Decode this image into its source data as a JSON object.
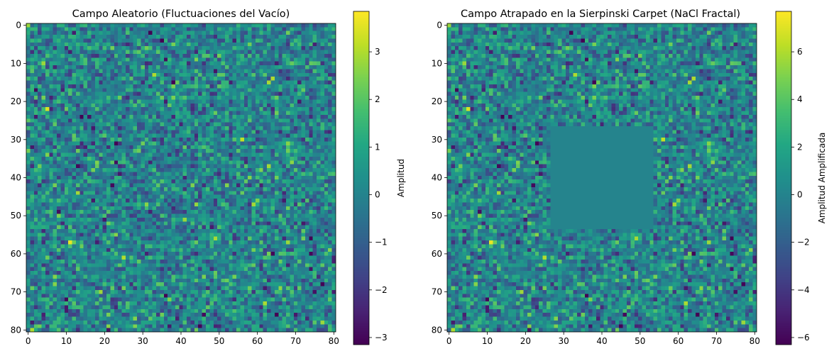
{
  "chart_data": [
    {
      "type": "heatmap",
      "title": "Campo Aleatorio (Fluctuaciones del Vacío)",
      "xlabel": "",
      "ylabel": "",
      "x_ticks": [
        0,
        10,
        20,
        30,
        40,
        50,
        60,
        70,
        80
      ],
      "y_ticks": [
        0,
        10,
        20,
        30,
        40,
        50,
        60,
        70,
        80
      ],
      "grid_size": [
        81,
        81
      ],
      "colormap": "viridis",
      "values_description_distribution": "random normal",
      "value_range": [
        -3.15,
        3.85
      ],
      "colorbar": {
        "label": "Amplitud",
        "ticks": [
          3,
          2,
          1,
          0,
          -1,
          -2,
          -3
        ],
        "tick_labels": [
          "3",
          "2",
          "1",
          "0",
          "−1",
          "−2",
          "−3"
        ]
      }
    },
    {
      "type": "heatmap",
      "title": "Campo Atrapado en la Sierpinski Carpet (NaCl Fractal)",
      "xlabel": "",
      "ylabel": "",
      "x_ticks": [
        0,
        10,
        20,
        30,
        40,
        50,
        60,
        70,
        80
      ],
      "y_ticks": [
        0,
        10,
        20,
        30,
        40,
        50,
        60,
        70,
        80
      ],
      "grid_size": [
        81,
        81
      ],
      "colormap": "viridis",
      "value_range": [
        -6.3,
        7.7
      ],
      "constant_region": {
        "x_range": [
          27,
          53
        ],
        "y_range": [
          27,
          53
        ],
        "value": 0
      },
      "colorbar": {
        "label": "Amplitud Amplificada",
        "ticks": [
          6,
          4,
          2,
          0,
          -2,
          -4,
          -6
        ],
        "tick_labels": [
          "6",
          "4",
          "2",
          "0",
          "−2",
          "−4",
          "−6"
        ]
      }
    }
  ],
  "axis_tick_labels": [
    "0",
    "10",
    "20",
    "30",
    "40",
    "50",
    "60",
    "70",
    "80"
  ]
}
